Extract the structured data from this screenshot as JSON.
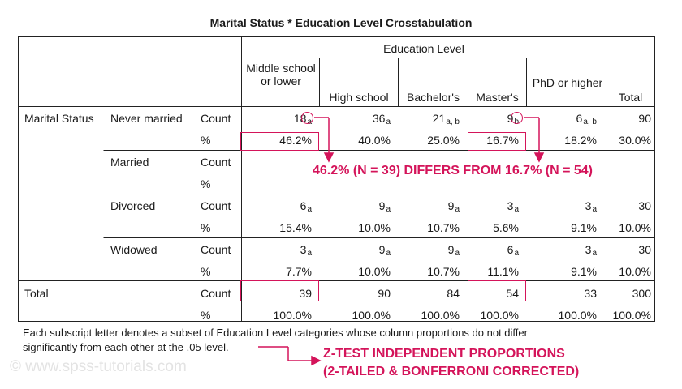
{
  "title": "Marital Status * Education Level Crosstabulation",
  "header": {
    "group_label": "Education Level",
    "columns": [
      "Middle school or lower",
      "High school",
      "Bachelor's",
      "Master's",
      "PhD or higher",
      "Total"
    ]
  },
  "row_group_label": "Marital Status",
  "rows": [
    {
      "category": "Never married",
      "stat": "Count",
      "values": [
        "18",
        "36",
        "21",
        "9",
        "6",
        "90"
      ],
      "subs": [
        "a",
        "a",
        "a, b",
        "b",
        "a, b",
        ""
      ]
    },
    {
      "category": "",
      "stat": "%",
      "values": [
        "46.2%",
        "40.0%",
        "25.0%",
        "16.7%",
        "18.2%",
        "30.0%"
      ],
      "subs": [
        "",
        "",
        "",
        "",
        "",
        ""
      ]
    },
    {
      "category": "Married",
      "stat": "Count",
      "values": [
        "",
        "",
        "",
        "",
        "",
        ""
      ],
      "subs": [
        "",
        "",
        "",
        "",
        "",
        ""
      ]
    },
    {
      "category": "",
      "stat": "%",
      "values": [
        "",
        "",
        "",
        "",
        "",
        ""
      ],
      "subs": [
        "",
        "",
        "",
        "",
        "",
        ""
      ]
    },
    {
      "category": "Divorced",
      "stat": "Count",
      "values": [
        "6",
        "9",
        "9",
        "3",
        "3",
        "30"
      ],
      "subs": [
        "a",
        "a",
        "a",
        "a",
        "a",
        ""
      ]
    },
    {
      "category": "",
      "stat": "%",
      "values": [
        "15.4%",
        "10.0%",
        "10.7%",
        "5.6%",
        "9.1%",
        "10.0%"
      ],
      "subs": [
        "",
        "",
        "",
        "",
        "",
        ""
      ]
    },
    {
      "category": "Widowed",
      "stat": "Count",
      "values": [
        "3",
        "9",
        "9",
        "6",
        "3",
        "30"
      ],
      "subs": [
        "a",
        "a",
        "a",
        "a",
        "a",
        ""
      ]
    },
    {
      "category": "",
      "stat": "%",
      "values": [
        "7.7%",
        "10.0%",
        "10.7%",
        "11.1%",
        "9.1%",
        "10.0%"
      ],
      "subs": [
        "",
        "",
        "",
        "",
        "",
        ""
      ]
    }
  ],
  "total_rows": [
    {
      "label": "Total",
      "stat": "Count",
      "values": [
        "39",
        "90",
        "84",
        "54",
        "33",
        "300"
      ]
    },
    {
      "label": "",
      "stat": "%",
      "values": [
        "100.0%",
        "100.0%",
        "100.0%",
        "100.0%",
        "100.0%",
        "100.0%"
      ]
    }
  ],
  "footnote": [
    "Each subscript letter denotes a subset of Education Level categories whose column proportions do not differ",
    "significantly from each other at the .05 level."
  ],
  "annotations": {
    "differs": "46.2% (N = 39) DIFFERS FROM 16.7% (N = 54)",
    "ztest_line1": "Z-TEST INDEPENDENT PROPORTIONS",
    "ztest_line2": "(2-TAILED & BONFERRONI CORRECTED)",
    "color": "#d4145a"
  },
  "watermark": "© www.spss-tutorials.com"
}
